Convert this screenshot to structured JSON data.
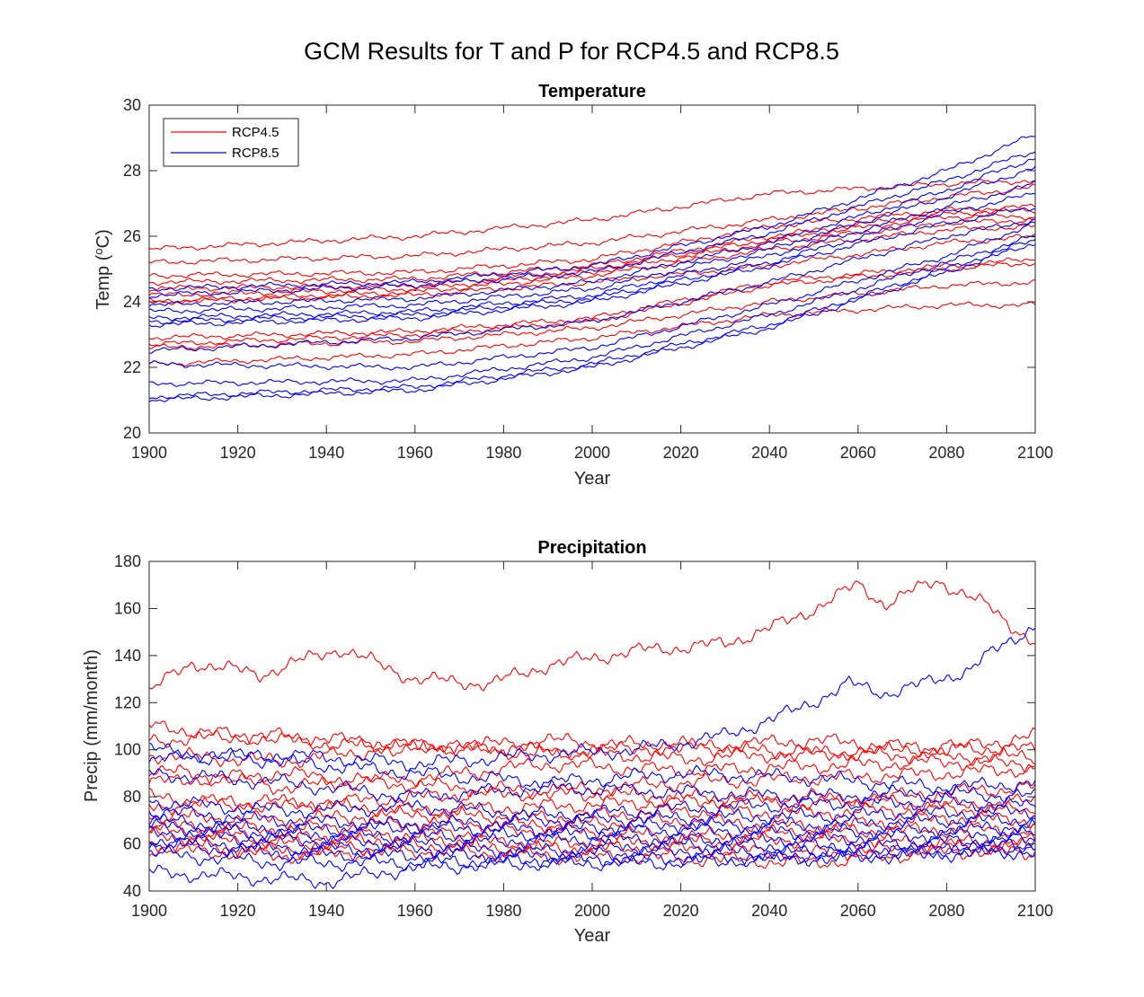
{
  "figure": {
    "suptitle": "GCM Results for T and P for RCP4.5 and RCP8.5"
  },
  "colors": {
    "rcp45": "#ff0000",
    "rcp85": "#0000ff",
    "axis": "#262626"
  },
  "chart_data": [
    {
      "type": "line",
      "title": "Temperature",
      "xlabel": "Year",
      "ylabel_main": "Temp (",
      "ylabel_sup": "o",
      "ylabel_tail": "C)",
      "xlim": [
        1900,
        2100
      ],
      "ylim": [
        20,
        30
      ],
      "xticks": [
        1900,
        1920,
        1940,
        1960,
        1980,
        2000,
        2020,
        2040,
        2060,
        2080,
        2100
      ],
      "yticks": [
        20,
        22,
        24,
        26,
        28,
        30
      ],
      "grid": false,
      "legend": {
        "location": "top-left",
        "entries": [
          "RCP4.5",
          "RCP8.5"
        ]
      },
      "series": [
        {
          "scenario": "RCP4.5",
          "x": [
            1900,
            1960,
            2000,
            2040,
            2080,
            2100
          ],
          "y": [
            25.6,
            26.0,
            26.5,
            27.3,
            27.6,
            27.7
          ]
        },
        {
          "scenario": "RCP4.5",
          "x": [
            1900,
            1960,
            2000,
            2040,
            2080,
            2100
          ],
          "y": [
            25.2,
            25.4,
            25.8,
            26.5,
            27.2,
            27.5
          ]
        },
        {
          "scenario": "RCP4.5",
          "x": [
            1900,
            1960,
            2000,
            2040,
            2080,
            2100
          ],
          "y": [
            24.8,
            24.9,
            25.3,
            26.3,
            26.8,
            26.9
          ]
        },
        {
          "scenario": "RCP4.5",
          "x": [
            1900,
            1960,
            2000,
            2040,
            2080,
            2100
          ],
          "y": [
            24.6,
            24.7,
            25.1,
            26.0,
            26.7,
            26.8
          ]
        },
        {
          "scenario": "RCP4.5",
          "x": [
            1900,
            1960,
            2000,
            2040,
            2080,
            2100
          ],
          "y": [
            24.4,
            24.5,
            25.0,
            25.9,
            26.6,
            26.6
          ]
        },
        {
          "scenario": "RCP4.5",
          "x": [
            1900,
            1960,
            2000,
            2040,
            2080,
            2100
          ],
          "y": [
            24.2,
            24.4,
            24.9,
            25.8,
            26.4,
            26.5
          ]
        },
        {
          "scenario": "RCP4.5",
          "x": [
            1900,
            1960,
            2000,
            2040,
            2080,
            2100
          ],
          "y": [
            24.0,
            24.3,
            24.8,
            25.6,
            26.2,
            26.3
          ]
        },
        {
          "scenario": "RCP4.5",
          "x": [
            1900,
            1960,
            2000,
            2040,
            2080,
            2100
          ],
          "y": [
            24.0,
            24.2,
            24.6,
            25.1,
            25.8,
            26.0
          ]
        },
        {
          "scenario": "RCP4.5",
          "x": [
            1900,
            1960,
            2000,
            2040,
            2080,
            2100
          ],
          "y": [
            22.9,
            23.1,
            23.5,
            24.6,
            25.1,
            25.3
          ]
        },
        {
          "scenario": "RCP4.5",
          "x": [
            1900,
            1960,
            2000,
            2040,
            2080,
            2100
          ],
          "y": [
            22.7,
            23.0,
            23.4,
            24.5,
            25.0,
            25.2
          ]
        },
        {
          "scenario": "RCP4.5",
          "x": [
            1900,
            1960,
            2000,
            2040,
            2080,
            2100
          ],
          "y": [
            22.6,
            22.8,
            23.2,
            24.0,
            24.5,
            24.6
          ]
        },
        {
          "scenario": "RCP4.5",
          "x": [
            1900,
            1960,
            2000,
            2040,
            2080,
            2100
          ],
          "y": [
            22.1,
            22.4,
            22.9,
            23.6,
            23.9,
            23.9
          ]
        },
        {
          "scenario": "RCP8.5",
          "x": [
            1900,
            1960,
            2000,
            2040,
            2080,
            2100
          ],
          "y": [
            24.4,
            24.6,
            25.1,
            26.3,
            28.0,
            29.1
          ]
        },
        {
          "scenario": "RCP8.5",
          "x": [
            1900,
            1960,
            2000,
            2040,
            2080,
            2100
          ],
          "y": [
            24.2,
            24.5,
            24.9,
            26.1,
            27.7,
            28.6
          ]
        },
        {
          "scenario": "RCP8.5",
          "x": [
            1900,
            1960,
            2000,
            2040,
            2080,
            2100
          ],
          "y": [
            23.9,
            24.1,
            24.6,
            25.8,
            27.4,
            28.4
          ]
        },
        {
          "scenario": "RCP8.5",
          "x": [
            1900,
            1960,
            2000,
            2040,
            2080,
            2100
          ],
          "y": [
            23.7,
            23.9,
            24.4,
            25.6,
            27.2,
            28.1
          ]
        },
        {
          "scenario": "RCP8.5",
          "x": [
            1900,
            1960,
            2000,
            2040,
            2080,
            2100
          ],
          "y": [
            23.5,
            23.7,
            24.2,
            25.4,
            26.9,
            27.6
          ]
        },
        {
          "scenario": "RCP8.5",
          "x": [
            1900,
            1960,
            2000,
            2040,
            2080,
            2100
          ],
          "y": [
            23.4,
            23.6,
            24.1,
            25.2,
            26.7,
            27.3
          ]
        },
        {
          "scenario": "RCP8.5",
          "x": [
            1900,
            1960,
            2000,
            2040,
            2080,
            2100
          ],
          "y": [
            23.3,
            23.5,
            24.0,
            25.1,
            26.4,
            26.9
          ]
        },
        {
          "scenario": "RCP8.5",
          "x": [
            1900,
            1960,
            2000,
            2040,
            2080,
            2100
          ],
          "y": [
            22.5,
            22.9,
            23.4,
            24.6,
            26.0,
            26.5
          ]
        },
        {
          "scenario": "RCP8.5",
          "x": [
            1900,
            1960,
            2000,
            2040,
            2080,
            2100
          ],
          "y": [
            22.1,
            22.0,
            22.6,
            23.9,
            25.4,
            26.4
          ]
        },
        {
          "scenario": "RCP8.5",
          "x": [
            1900,
            1960,
            2000,
            2040,
            2080,
            2100
          ],
          "y": [
            21.5,
            21.6,
            22.3,
            23.6,
            25.2,
            26.0
          ]
        },
        {
          "scenario": "RCP8.5",
          "x": [
            1900,
            1960,
            2000,
            2040,
            2080,
            2100
          ],
          "y": [
            21.1,
            21.4,
            22.1,
            23.3,
            25.0,
            25.9
          ]
        },
        {
          "scenario": "RCP8.5",
          "x": [
            1900,
            1960,
            2000,
            2040,
            2080,
            2100
          ],
          "y": [
            21.0,
            21.3,
            22.0,
            23.2,
            24.9,
            25.8
          ]
        }
      ]
    },
    {
      "type": "line",
      "title": "Precipitation",
      "xlabel": "Year",
      "ylabel": "Precip (mm/month)",
      "xlim": [
        1900,
        2100
      ],
      "ylim": [
        40,
        180
      ],
      "xticks": [
        1900,
        1920,
        1940,
        1960,
        1980,
        2000,
        2020,
        2040,
        2060,
        2080,
        2100
      ],
      "yticks": [
        40,
        60,
        80,
        100,
        120,
        140,
        160,
        180
      ],
      "grid": false,
      "series": [
        {
          "scenario": "RCP4.5",
          "x": [
            1900,
            1910,
            1925,
            1943,
            1960,
            1977,
            1990,
            2010,
            2030,
            2045,
            2060,
            2066,
            2078,
            2090,
            2100
          ],
          "y": [
            125,
            137,
            132,
            143,
            130,
            128,
            136,
            142,
            145,
            155,
            170,
            162,
            172,
            160,
            145
          ]
        },
        {
          "scenario": "RCP4.5",
          "x": [
            1900,
            1930,
            1960,
            1990,
            2020,
            2050,
            2080,
            2100
          ],
          "y": [
            110,
            104,
            100,
            104,
            101,
            104,
            100,
            106
          ]
        },
        {
          "scenario": "RCP4.5",
          "x": [
            1900,
            1930,
            1960,
            1990,
            2020,
            2050,
            2080,
            2100
          ],
          "y": [
            104,
            106,
            102,
            98,
            102,
            98,
            101,
            100
          ]
        },
        {
          "scenario": "RCP4.5",
          "x": [
            1900,
            1930,
            1960,
            1990,
            2020,
            2050,
            2080,
            2100
          ],
          "y": [
            98,
            95,
            102,
            100,
            96,
            99,
            97,
            97
          ]
        },
        {
          "scenario": "RCP4.5",
          "x": [
            1900,
            1930,
            1960,
            1990,
            2020,
            2050,
            2080,
            2100
          ],
          "y": [
            92,
            84,
            88,
            94,
            91,
            93,
            95,
            94
          ]
        },
        {
          "scenario": "RCP4.5",
          "x": [
            1900,
            1930,
            1960,
            1990,
            2020,
            2050,
            2080,
            2100
          ],
          "y": [
            86,
            90,
            85,
            82,
            86,
            88,
            90,
            92
          ]
        },
        {
          "scenario": "RCP4.5",
          "x": [
            1900,
            1930,
            1960,
            1990,
            2020,
            2050,
            2080,
            2100
          ],
          "y": [
            80,
            76,
            80,
            82,
            80,
            77,
            82,
            84
          ]
        },
        {
          "scenario": "RCP4.5",
          "x": [
            1900,
            1930,
            1960,
            1990,
            2020,
            2050,
            2080,
            2100
          ],
          "y": [
            76,
            78,
            74,
            76,
            78,
            80,
            76,
            78
          ]
        },
        {
          "scenario": "RCP4.5",
          "x": [
            1900,
            1930,
            1960,
            1990,
            2020,
            2050,
            2080,
            2100
          ],
          "y": [
            72,
            70,
            73,
            71,
            74,
            73,
            75,
            74
          ]
        },
        {
          "scenario": "RCP4.5",
          "x": [
            1900,
            1930,
            1960,
            1990,
            2020,
            2050,
            2080,
            2100
          ],
          "y": [
            68,
            66,
            69,
            68,
            70,
            67,
            71,
            70
          ]
        },
        {
          "scenario": "RCP4.5",
          "x": [
            1900,
            1930,
            1960,
            1990,
            2020,
            2050,
            2080,
            2100
          ],
          "y": [
            66,
            62,
            64,
            66,
            63,
            65,
            66,
            66
          ]
        },
        {
          "scenario": "RCP4.5",
          "x": [
            1900,
            1930,
            1960,
            1990,
            2020,
            2050,
            2080,
            2100
          ],
          "y": [
            64,
            60,
            62,
            60,
            61,
            62,
            60,
            61
          ]
        },
        {
          "scenario": "RCP4.5",
          "x": [
            1900,
            1930,
            1960,
            1990,
            2020,
            2050,
            2080,
            2100
          ],
          "y": [
            60,
            57,
            59,
            58,
            58,
            56,
            59,
            59
          ]
        },
        {
          "scenario": "RCP4.5",
          "x": [
            1900,
            1930,
            1960,
            1990,
            2020,
            2050,
            2080,
            2100
          ],
          "y": [
            58,
            55,
            57,
            55,
            54,
            52,
            57,
            56
          ]
        },
        {
          "scenario": "RCP8.5",
          "x": [
            1900,
            1930,
            1960,
            1990,
            2010,
            2030,
            2045,
            2058,
            2066,
            2075,
            2085,
            2094,
            2100
          ],
          "y": [
            96,
            98,
            94,
            98,
            100,
            106,
            116,
            128,
            124,
            128,
            134,
            146,
            153
          ]
        },
        {
          "scenario": "RCP8.5",
          "x": [
            1900,
            1930,
            1960,
            1990,
            2020,
            2050,
            2080,
            2100
          ],
          "y": [
            100,
            95,
            90,
            86,
            90,
            88,
            84,
            86
          ]
        },
        {
          "scenario": "RCP8.5",
          "x": [
            1900,
            1930,
            1960,
            1990,
            2020,
            2050,
            2080,
            2100
          ],
          "y": [
            90,
            86,
            80,
            84,
            82,
            80,
            82,
            80
          ]
        },
        {
          "scenario": "RCP8.5",
          "x": [
            1900,
            1930,
            1960,
            1990,
            2020,
            2050,
            2080,
            2100
          ],
          "y": [
            78,
            74,
            76,
            72,
            75,
            77,
            78,
            76
          ]
        },
        {
          "scenario": "RCP8.5",
          "x": [
            1900,
            1930,
            1960,
            1990,
            2020,
            2050,
            2080,
            2100
          ],
          "y": [
            74,
            70,
            68,
            70,
            71,
            72,
            73,
            74
          ]
        },
        {
          "scenario": "RCP8.5",
          "x": [
            1900,
            1930,
            1960,
            1990,
            2020,
            2050,
            2080,
            2100
          ],
          "y": [
            70,
            66,
            67,
            66,
            68,
            68,
            70,
            70
          ]
        },
        {
          "scenario": "RCP8.5",
          "x": [
            1900,
            1930,
            1960,
            1990,
            2020,
            2050,
            2080,
            2100
          ],
          "y": [
            68,
            64,
            63,
            64,
            66,
            65,
            66,
            68
          ]
        },
        {
          "scenario": "RCP8.5",
          "x": [
            1900,
            1930,
            1960,
            1990,
            2020,
            2050,
            2080,
            2100
          ],
          "y": [
            65,
            62,
            60,
            62,
            62,
            62,
            64,
            64
          ]
        },
        {
          "scenario": "RCP8.5",
          "x": [
            1900,
            1930,
            1960,
            1990,
            2020,
            2050,
            2080,
            2100
          ],
          "y": [
            62,
            58,
            58,
            57,
            60,
            59,
            61,
            62
          ]
        },
        {
          "scenario": "RCP8.5",
          "x": [
            1900,
            1930,
            1960,
            1990,
            2020,
            2050,
            2080,
            2100
          ],
          "y": [
            60,
            56,
            55,
            55,
            57,
            56,
            58,
            60
          ]
        },
        {
          "scenario": "RCP8.5",
          "x": [
            1900,
            1930,
            1960,
            1990,
            2020,
            2050,
            2080,
            2100
          ],
          "y": [
            56,
            52,
            52,
            53,
            54,
            54,
            56,
            57
          ]
        },
        {
          "scenario": "RCP8.5",
          "x": [
            1900,
            1920,
            1940,
            1960,
            1990,
            2020,
            2050,
            2080,
            2100
          ],
          "y": [
            48,
            46,
            44,
            50,
            52,
            52,
            55,
            57,
            58
          ]
        }
      ]
    }
  ]
}
